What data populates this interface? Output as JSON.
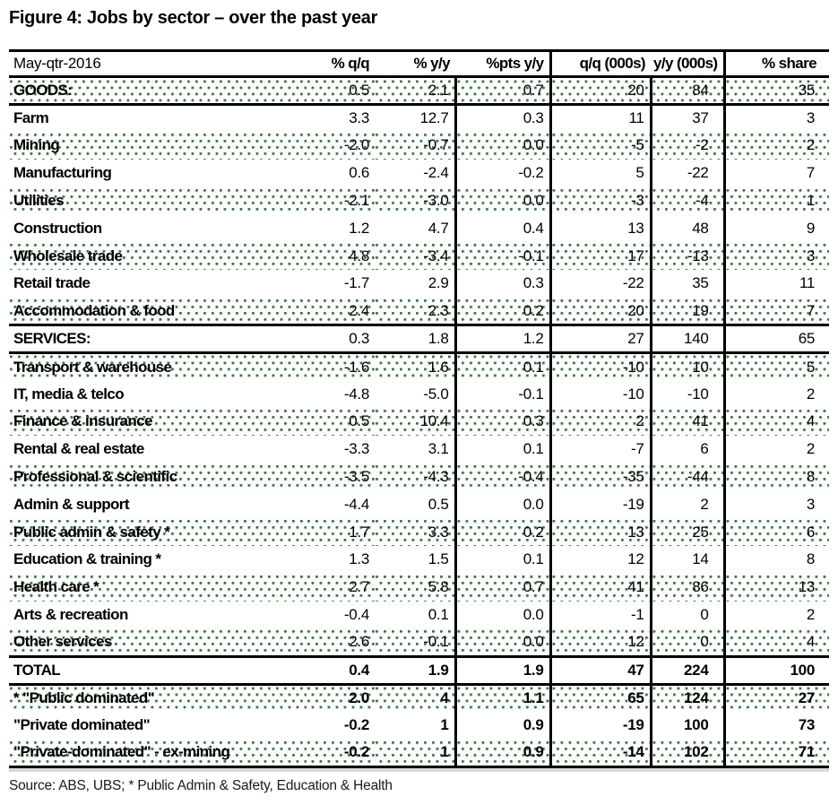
{
  "figure": {
    "title": "Figure 4: Jobs by sector – over the past year",
    "source_note": "Source: ABS, UBS; * Public Admin & Safety, Education & Health"
  },
  "colors": {
    "rule": "#000000",
    "shading_dot": "#47684f",
    "shading_background": "#fcfefc",
    "table_shadow": "#d9d9d9"
  },
  "table": {
    "header": {
      "label": "May-qtr-2016",
      "columns": [
        "% q/q",
        "% y/y",
        "%pts y/y",
        "q/q (000s)",
        "y/y (000s)",
        "% share"
      ]
    },
    "rows": [
      {
        "label": "GOODS:",
        "values": [
          "0.5",
          "2.1",
          "0.7",
          "20",
          "84",
          "35"
        ],
        "shaded": true,
        "values_bold": false,
        "rule_below": true
      },
      {
        "label": "Farm",
        "values": [
          "3.3",
          "12.7",
          "0.3",
          "11",
          "37",
          "3"
        ],
        "shaded": false,
        "values_bold": false,
        "rule_below": false
      },
      {
        "label": "Mining",
        "values": [
          "-2.0",
          "-0.7",
          "0.0",
          "-5",
          "-2",
          "2"
        ],
        "shaded": true,
        "values_bold": false,
        "rule_below": false
      },
      {
        "label": "Manufacturing",
        "values": [
          "0.6",
          "-2.4",
          "-0.2",
          "5",
          "-22",
          "7"
        ],
        "shaded": false,
        "values_bold": false,
        "rule_below": false
      },
      {
        "label": "Utilities",
        "values": [
          "-2.1",
          "-3.0",
          "0.0",
          "-3",
          "-4",
          "1"
        ],
        "shaded": true,
        "values_bold": false,
        "rule_below": false
      },
      {
        "label": "Construction",
        "values": [
          "1.2",
          "4.7",
          "0.4",
          "13",
          "48",
          "9"
        ],
        "shaded": false,
        "values_bold": false,
        "rule_below": false
      },
      {
        "label": "Wholesale trade",
        "values": [
          "4.8",
          "-3.4",
          "-0.1",
          "17",
          "-13",
          "3"
        ],
        "shaded": true,
        "values_bold": false,
        "rule_below": false
      },
      {
        "label": "Retail trade",
        "values": [
          "-1.7",
          "2.9",
          "0.3",
          "-22",
          "35",
          "11"
        ],
        "shaded": false,
        "values_bold": false,
        "rule_below": false
      },
      {
        "label": "Accommodation & food",
        "values": [
          "2.4",
          "2.3",
          "0.2",
          "20",
          "19",
          "7"
        ],
        "shaded": true,
        "values_bold": false,
        "rule_below": true
      },
      {
        "label": "SERVICES:",
        "values": [
          "0.3",
          "1.8",
          "1.2",
          "27",
          "140",
          "65"
        ],
        "shaded": false,
        "values_bold": false,
        "rule_below": true
      },
      {
        "label": "Transport & warehouse",
        "values": [
          "-1.6",
          "1.6",
          "0.1",
          "-10",
          "10",
          "5"
        ],
        "shaded": true,
        "values_bold": false,
        "rule_below": false
      },
      {
        "label": "IT, media & telco",
        "values": [
          "-4.8",
          "-5.0",
          "-0.1",
          "-10",
          "-10",
          "2"
        ],
        "shaded": false,
        "values_bold": false,
        "rule_below": false
      },
      {
        "label": "Finance & insurance",
        "values": [
          "0.5",
          "10.4",
          "0.3",
          "2",
          "41",
          "4"
        ],
        "shaded": true,
        "values_bold": false,
        "rule_below": false
      },
      {
        "label": "Rental & real estate",
        "values": [
          "-3.3",
          "3.1",
          "0.1",
          "-7",
          "6",
          "2"
        ],
        "shaded": false,
        "values_bold": false,
        "rule_below": false
      },
      {
        "label": "Professional & scientific",
        "values": [
          "-3.5",
          "-4.3",
          "-0.4",
          "-35",
          "-44",
          "8"
        ],
        "shaded": true,
        "values_bold": false,
        "rule_below": false
      },
      {
        "label": "Admin & support",
        "values": [
          "-4.4",
          "0.5",
          "0.0",
          "-19",
          "2",
          "3"
        ],
        "shaded": false,
        "values_bold": false,
        "rule_below": false
      },
      {
        "label": "Public admin & safety *",
        "values": [
          "1.7",
          "3.3",
          "0.2",
          "13",
          "25",
          "6"
        ],
        "shaded": true,
        "values_bold": false,
        "rule_below": false
      },
      {
        "label": "Education & training *",
        "values": [
          "1.3",
          "1.5",
          "0.1",
          "12",
          "14",
          "8"
        ],
        "shaded": false,
        "values_bold": false,
        "rule_below": false
      },
      {
        "label": "Health care *",
        "values": [
          "2.7",
          "5.8",
          "0.7",
          "41",
          "86",
          "13"
        ],
        "shaded": true,
        "values_bold": false,
        "rule_below": false
      },
      {
        "label": "Arts & recreation",
        "values": [
          "-0.4",
          "0.1",
          "0.0",
          "-1",
          "0",
          "2"
        ],
        "shaded": false,
        "values_bold": false,
        "rule_below": false
      },
      {
        "label": "Other services",
        "values": [
          "2.6",
          "-0.1",
          "0.0",
          "12",
          "0",
          "4"
        ],
        "shaded": true,
        "values_bold": false,
        "rule_below": true
      },
      {
        "label": "TOTAL",
        "values": [
          "0.4",
          "1.9",
          "1.9",
          "47",
          "224",
          "100"
        ],
        "shaded": false,
        "values_bold": true,
        "rule_below": true
      },
      {
        "label": "* \"Public dominated\"",
        "values": [
          "2.0",
          "4",
          "1.1",
          "65",
          "124",
          "27"
        ],
        "shaded": true,
        "values_bold": true,
        "rule_below": false
      },
      {
        "label": "\"Private dominated\"",
        "values": [
          "-0.2",
          "1",
          "0.9",
          "-19",
          "100",
          "73"
        ],
        "shaded": false,
        "values_bold": true,
        "rule_below": false
      },
      {
        "label": "\"Private-dominated\" - ex-mining",
        "values": [
          "-0.2",
          "1",
          "0.9",
          "-14",
          "102",
          "71"
        ],
        "shaded": true,
        "values_bold": true,
        "rule_below": true
      }
    ]
  }
}
